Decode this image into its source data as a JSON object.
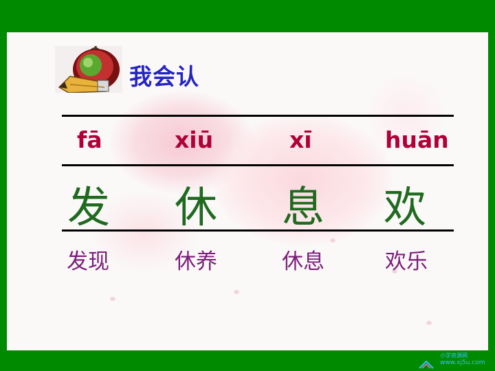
{
  "heading": "我会认",
  "columns": [
    {
      "pinyin": "fā",
      "character": "发",
      "word": "发现"
    },
    {
      "pinyin": "xiū",
      "character": "休",
      "word": "休养"
    },
    {
      "pinyin": "xī",
      "character": "息",
      "word": "休息"
    },
    {
      "pinyin": "huān",
      "character": "欢",
      "word": "欢乐"
    }
  ],
  "watermark": {
    "line1": "小学资源网",
    "line2": "www.xj5u.com"
  },
  "colors": {
    "frame": "#008a00",
    "heading": "#2424c4",
    "pinyin": "#b0003a",
    "character": "#1f6a1f",
    "word": "#7a1f7a"
  },
  "icons": {
    "logo": "apple-pencil-icon"
  }
}
